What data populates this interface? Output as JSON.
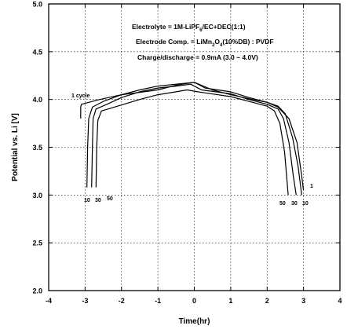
{
  "chart_data": {
    "type": "line",
    "xlabel": "Time(hr)",
    "ylabel": "Potential vs. Li [V]",
    "xlim": [
      -4,
      4
    ],
    "ylim": [
      2.0,
      5.0
    ],
    "x_ticks": [
      "-4",
      "-3",
      "-2",
      "-1",
      "0",
      "1",
      "2",
      "3",
      "4"
    ],
    "y_ticks": [
      "2.0",
      "2.5",
      "3.0",
      "3.5",
      "4.0",
      "4.5",
      "5.0"
    ],
    "grid": true,
    "annotations": [
      {
        "text_parts": [
          "Electrolyte = 1M-LiPF",
          "6",
          "/EC+DEC(1:1)"
        ]
      },
      {
        "text_parts": [
          "Electrode Comp. = LiMn",
          "2",
          "O",
          "4",
          "(10%DB) : PVDF"
        ]
      },
      {
        "text_parts": [
          "Charge/discharge = 0.9mA (3.0 ~ 4.0V)"
        ]
      }
    ],
    "cycle_labels": {
      "first": "1 cycle",
      "charge": [
        "10",
        "30",
        "50"
      ],
      "discharge": [
        "50",
        "30",
        "10"
      ],
      "discharge_first": "1"
    },
    "series": [
      {
        "cycle": "1",
        "x": [
          -3.12,
          -3.12,
          -3.1,
          -2.6,
          -2.0,
          -1.0,
          -0.5,
          0.0,
          0.5,
          1.0,
          1.6,
          2.0,
          2.3,
          2.6,
          2.82,
          2.95,
          3.0
        ],
        "y": [
          3.8,
          3.92,
          3.95,
          4.0,
          4.05,
          4.1,
          4.15,
          4.18,
          4.1,
          4.05,
          4.0,
          3.97,
          3.92,
          3.8,
          3.55,
          3.2,
          3.05
        ]
      },
      {
        "cycle": "10",
        "x": [
          -2.95,
          -2.93,
          -2.9,
          -2.8,
          -2.5,
          -2.0,
          -1.5,
          -1.0,
          -0.5,
          0.0,
          0.3,
          1.0,
          1.5,
          2.0,
          2.3,
          2.5,
          2.7,
          2.85,
          2.95
        ],
        "y": [
          3.08,
          3.5,
          3.8,
          3.92,
          3.98,
          4.05,
          4.1,
          4.14,
          4.16,
          4.18,
          4.12,
          4.08,
          4.02,
          3.97,
          3.93,
          3.85,
          3.6,
          3.3,
          3.0
        ]
      },
      {
        "cycle": "30",
        "x": [
          -2.82,
          -2.8,
          -2.78,
          -2.7,
          -2.4,
          -2.0,
          -1.5,
          -1.0,
          -0.5,
          -0.1,
          0.2,
          1.0,
          1.5,
          2.0,
          2.3,
          2.45,
          2.6,
          2.72,
          2.8
        ],
        "y": [
          3.08,
          3.5,
          3.8,
          3.9,
          3.95,
          4.02,
          4.08,
          4.12,
          4.14,
          4.16,
          4.1,
          4.06,
          4.0,
          3.95,
          3.9,
          3.8,
          3.55,
          3.2,
          3.0
        ]
      },
      {
        "cycle": "50",
        "x": [
          -2.7,
          -2.68,
          -2.65,
          -2.55,
          -2.2,
          -1.5,
          -1.0,
          -0.5,
          -0.2,
          0.1,
          1.0,
          1.5,
          2.0,
          2.2,
          2.35,
          2.48,
          2.58
        ],
        "y": [
          3.08,
          3.5,
          3.78,
          3.88,
          3.92,
          4.0,
          4.05,
          4.08,
          4.1,
          4.08,
          4.03,
          3.98,
          3.93,
          3.88,
          3.75,
          3.45,
          3.0
        ]
      }
    ]
  }
}
